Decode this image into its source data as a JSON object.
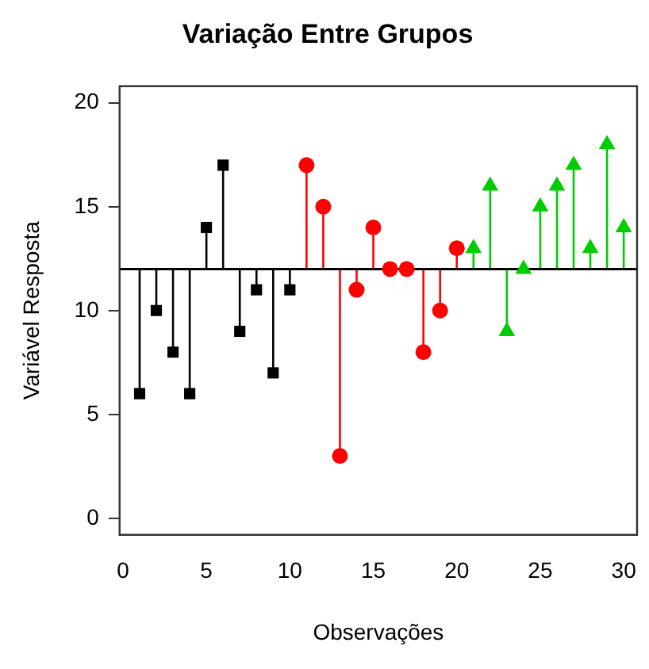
{
  "chart_data": {
    "type": "lollipop",
    "title": "Variação Entre Grupos",
    "xlabel": "Observações",
    "ylabel": "Variável Resposta",
    "xlim": [
      -0.2,
      30.8
    ],
    "xticks": [
      0,
      5,
      10,
      15,
      20,
      25,
      30
    ],
    "ylim": [
      -0.8,
      20.8
    ],
    "yticks": [
      0,
      5,
      10,
      15,
      20
    ],
    "grid": false,
    "legend": false,
    "ref_lines": [
      {
        "axis": "y",
        "value": 12,
        "color": "#000000"
      }
    ],
    "series": [
      {
        "color": "#000000",
        "marker": "square",
        "x": [
          1,
          2,
          3,
          4,
          5,
          6,
          7,
          8,
          9,
          10
        ],
        "values": [
          6,
          10,
          8,
          6,
          14,
          17,
          9,
          11,
          7,
          11
        ],
        "errors": [
          [
            6,
            12
          ],
          [
            10,
            12
          ],
          [
            8,
            12
          ],
          [
            6,
            12
          ],
          [
            12,
            14
          ],
          [
            12,
            17
          ],
          [
            9,
            12
          ],
          [
            11,
            12
          ],
          [
            7,
            12
          ],
          [
            11,
            12
          ]
        ]
      },
      {
        "color": "#ff0000",
        "marker": "circle",
        "x": [
          11,
          12,
          13,
          14,
          15,
          16,
          17,
          18,
          19,
          20
        ],
        "values": [
          17,
          15,
          3,
          11,
          14,
          12,
          12,
          8,
          10,
          13
        ],
        "errors": [
          [
            12,
            17
          ],
          [
            12,
            15
          ],
          [
            3,
            12
          ],
          [
            11,
            12
          ],
          [
            12,
            14
          ],
          null,
          null,
          [
            8,
            12
          ],
          [
            10,
            12
          ],
          [
            12,
            13
          ]
        ]
      },
      {
        "color": "#00cc00",
        "marker": "triangle",
        "x": [
          21,
          22,
          23,
          24,
          25,
          26,
          27,
          28,
          29,
          30
        ],
        "values": [
          13,
          16,
          9,
          12,
          15,
          16,
          17,
          13,
          18,
          14
        ],
        "errors": [
          [
            12,
            13
          ],
          [
            12,
            16
          ],
          [
            9,
            12
          ],
          null,
          [
            12,
            15
          ],
          [
            12,
            16
          ],
          [
            12,
            17
          ],
          [
            12,
            13
          ],
          [
            12,
            18
          ],
          [
            12,
            14
          ]
        ]
      }
    ]
  }
}
